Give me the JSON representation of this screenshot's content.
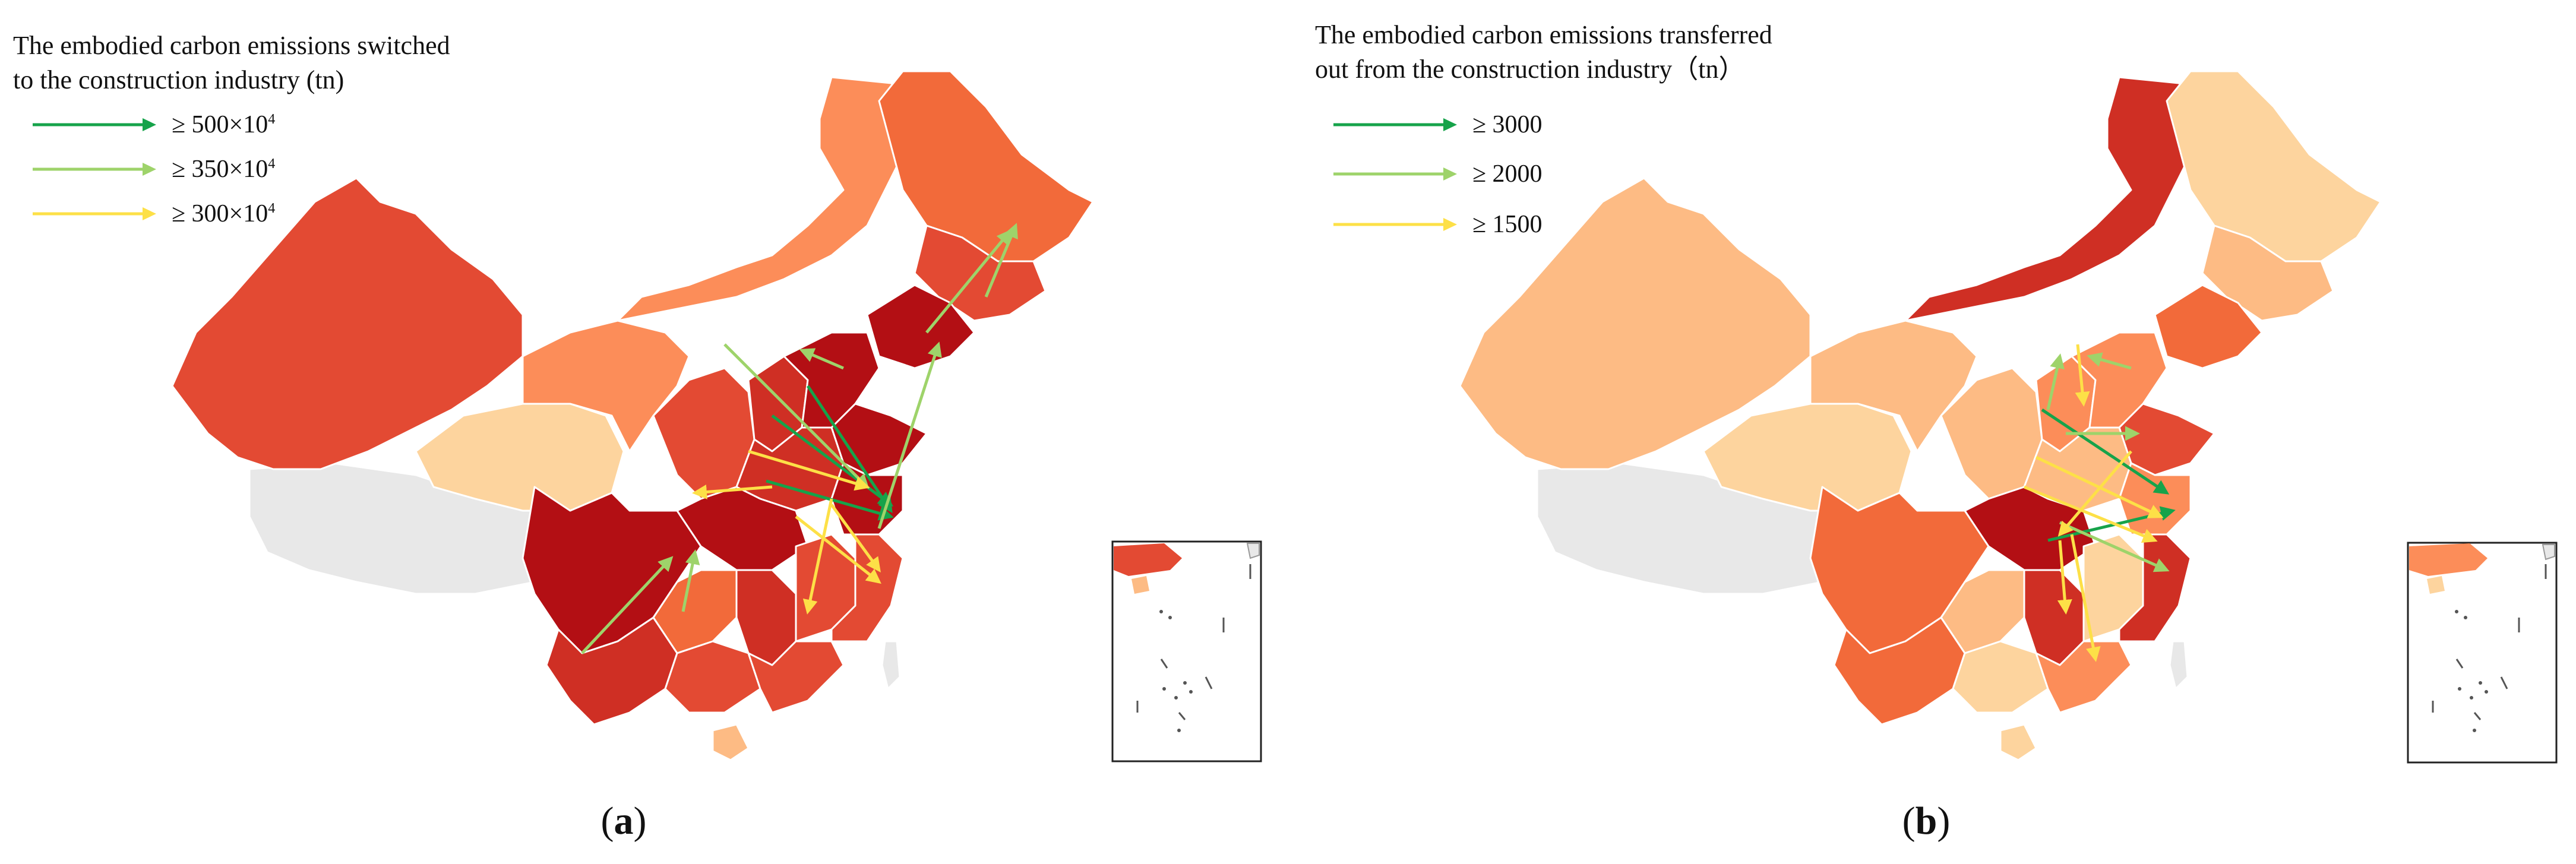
{
  "colors": {
    "scale": [
      "#fdd49e",
      "#fdbb84",
      "#fc8d59",
      "#f26a3a",
      "#e34a33",
      "#cf2f24",
      "#b30f14"
    ],
    "no_data": "#e8e8e8",
    "arrow_dark_green": "#16a34a",
    "arrow_light_green": "#9ed36a",
    "arrow_yellow": "#fde047",
    "boundary": "#ffffff"
  },
  "panels": [
    {
      "id": "a",
      "legend_title_line1": "The embodied carbon emissions switched",
      "legend_title_line2": "to the construction industry (tn)",
      "legend": [
        {
          "label": "≥ 500×10",
          "sup": "4",
          "color": "arrow_dark_green"
        },
        {
          "label": "≥ 350×10",
          "sup": "4",
          "color": "arrow_light_green"
        },
        {
          "label": "≥ 300×10",
          "sup": "4",
          "color": "arrow_yellow"
        }
      ],
      "caption_letter": "a"
    },
    {
      "id": "b",
      "legend_title_line1": "The embodied carbon  emissions transferred",
      "legend_title_line2": "out from the construction industry（tn）",
      "legend": [
        {
          "label": "≥ 3000",
          "sup": "",
          "color": "arrow_dark_green"
        },
        {
          "label": "≥ 2000",
          "sup": "",
          "color": "arrow_light_green"
        },
        {
          "label": "≥ 1500",
          "sup": "",
          "color": "arrow_yellow"
        }
      ],
      "caption_letter": "b"
    }
  ]
}
